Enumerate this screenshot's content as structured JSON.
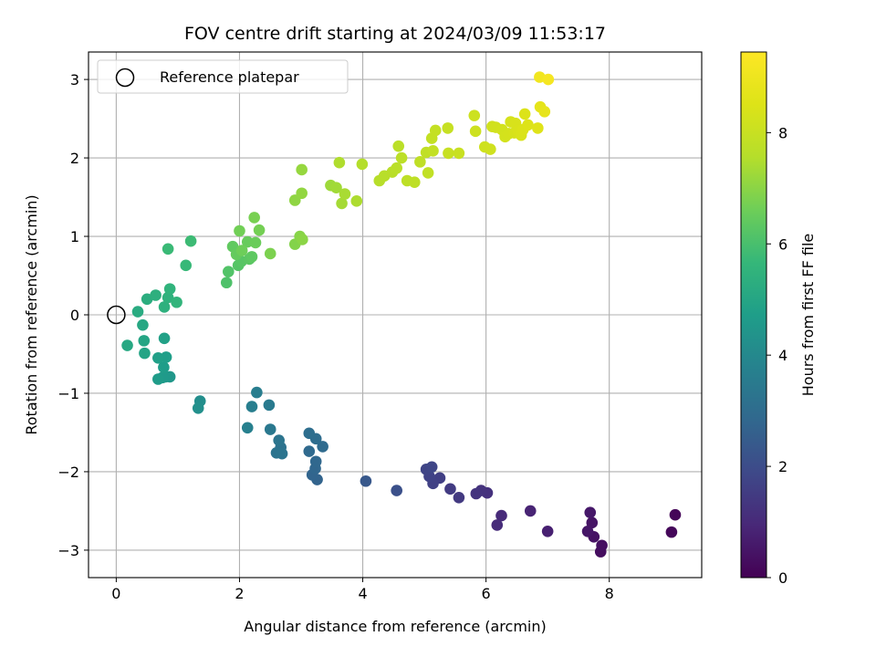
{
  "chart_data": {
    "type": "scatter",
    "title": "FOV centre drift starting at 2024/03/09 11:53:17",
    "xlabel": "Angular distance from reference (arcmin)",
    "ylabel": "Rotation from reference (arcmin)",
    "xlim": [
      -0.45,
      9.5
    ],
    "ylim": [
      -3.35,
      3.35
    ],
    "xticks": [
      0,
      2,
      4,
      6,
      8
    ],
    "yticks": [
      -3,
      -2,
      -1,
      0,
      1,
      2,
      3
    ],
    "grid": true,
    "legend": {
      "placement": "top-left",
      "entries": [
        {
          "label": "Reference platepar",
          "marker": "open-circle"
        }
      ]
    },
    "reference_point": {
      "x": 0,
      "y": 0
    },
    "colorbar": {
      "label": "Hours from first FF file",
      "colormap": "viridis",
      "range": [
        0,
        9.45
      ],
      "ticks": [
        0,
        2,
        4,
        6,
        8
      ]
    },
    "points": [
      {
        "x": 9.07,
        "y": -2.55,
        "c": 0.1
      },
      {
        "x": 9.01,
        "y": -2.77,
        "c": 0.15
      },
      {
        "x": 7.86,
        "y": -3.02,
        "c": 0.3
      },
      {
        "x": 7.88,
        "y": -2.94,
        "c": 0.35
      },
      {
        "x": 7.75,
        "y": -2.83,
        "c": 0.4
      },
      {
        "x": 7.72,
        "y": -2.65,
        "c": 0.45
      },
      {
        "x": 7.65,
        "y": -2.76,
        "c": 0.5
      },
      {
        "x": 7.69,
        "y": -2.52,
        "c": 0.55
      },
      {
        "x": 7.0,
        "y": -2.76,
        "c": 0.75
      },
      {
        "x": 6.72,
        "y": -2.5,
        "c": 0.85
      },
      {
        "x": 6.25,
        "y": -2.56,
        "c": 1.0
      },
      {
        "x": 6.18,
        "y": -2.68,
        "c": 1.05
      },
      {
        "x": 6.02,
        "y": -2.27,
        "c": 1.2
      },
      {
        "x": 5.92,
        "y": -2.24,
        "c": 1.25
      },
      {
        "x": 5.84,
        "y": -2.28,
        "c": 1.3
      },
      {
        "x": 5.56,
        "y": -2.33,
        "c": 1.45
      },
      {
        "x": 5.42,
        "y": -2.22,
        "c": 1.5
      },
      {
        "x": 5.25,
        "y": -2.08,
        "c": 1.6
      },
      {
        "x": 5.14,
        "y": -2.15,
        "c": 1.65
      },
      {
        "x": 5.08,
        "y": -2.06,
        "c": 1.7
      },
      {
        "x": 5.03,
        "y": -1.97,
        "c": 1.75
      },
      {
        "x": 5.12,
        "y": -1.94,
        "c": 1.8
      },
      {
        "x": 4.55,
        "y": -2.24,
        "c": 2.1
      },
      {
        "x": 4.05,
        "y": -2.12,
        "c": 2.35
      },
      {
        "x": 3.26,
        "y": -2.1,
        "c": 2.7
      },
      {
        "x": 3.18,
        "y": -2.04,
        "c": 2.75
      },
      {
        "x": 3.23,
        "y": -1.96,
        "c": 2.8
      },
      {
        "x": 3.24,
        "y": -1.87,
        "c": 2.85
      },
      {
        "x": 3.13,
        "y": -1.74,
        "c": 2.9
      },
      {
        "x": 3.35,
        "y": -1.68,
        "c": 2.95
      },
      {
        "x": 3.24,
        "y": -1.58,
        "c": 3.0
      },
      {
        "x": 3.13,
        "y": -1.51,
        "c": 3.05
      },
      {
        "x": 2.67,
        "y": -1.69,
        "c": 3.2
      },
      {
        "x": 2.6,
        "y": -1.76,
        "c": 3.25
      },
      {
        "x": 2.69,
        "y": -1.77,
        "c": 3.28
      },
      {
        "x": 2.64,
        "y": -1.6,
        "c": 3.3
      },
      {
        "x": 2.5,
        "y": -1.46,
        "c": 3.4
      },
      {
        "x": 2.48,
        "y": -1.15,
        "c": 3.5
      },
      {
        "x": 2.28,
        "y": -0.99,
        "c": 3.6
      },
      {
        "x": 2.2,
        "y": -1.17,
        "c": 3.65
      },
      {
        "x": 2.13,
        "y": -1.44,
        "c": 3.7
      },
      {
        "x": 1.36,
        "y": -1.1,
        "c": 4.2
      },
      {
        "x": 1.33,
        "y": -1.19,
        "c": 4.25
      },
      {
        "x": 0.87,
        "y": -0.79,
        "c": 4.5
      },
      {
        "x": 0.8,
        "y": -0.79,
        "c": 4.55
      },
      {
        "x": 0.75,
        "y": -0.8,
        "c": 4.6
      },
      {
        "x": 0.68,
        "y": -0.82,
        "c": 4.65
      },
      {
        "x": 0.77,
        "y": -0.67,
        "c": 4.7
      },
      {
        "x": 0.81,
        "y": -0.54,
        "c": 4.75
      },
      {
        "x": 0.68,
        "y": -0.55,
        "c": 4.8
      },
      {
        "x": 0.78,
        "y": -0.3,
        "c": 4.85
      },
      {
        "x": 0.46,
        "y": -0.49,
        "c": 4.95
      },
      {
        "x": 0.45,
        "y": -0.33,
        "c": 5.0
      },
      {
        "x": 0.43,
        "y": -0.13,
        "c": 5.05
      },
      {
        "x": 0.18,
        "y": -0.39,
        "c": 5.1
      },
      {
        "x": 0.35,
        "y": 0.04,
        "c": 5.2
      },
      {
        "x": 0.5,
        "y": 0.2,
        "c": 5.3
      },
      {
        "x": 0.64,
        "y": 0.25,
        "c": 5.35
      },
      {
        "x": 0.78,
        "y": 0.1,
        "c": 5.4
      },
      {
        "x": 0.84,
        "y": 0.22,
        "c": 5.45
      },
      {
        "x": 0.87,
        "y": 0.33,
        "c": 5.5
      },
      {
        "x": 0.98,
        "y": 0.16,
        "c": 5.55
      },
      {
        "x": 1.13,
        "y": 0.63,
        "c": 5.7
      },
      {
        "x": 0.84,
        "y": 0.84,
        "c": 5.75
      },
      {
        "x": 1.21,
        "y": 0.94,
        "c": 5.8
      },
      {
        "x": 1.79,
        "y": 0.41,
        "c": 6.1
      },
      {
        "x": 1.82,
        "y": 0.55,
        "c": 6.15
      },
      {
        "x": 1.98,
        "y": 0.63,
        "c": 6.2
      },
      {
        "x": 2.03,
        "y": 0.68,
        "c": 6.25
      },
      {
        "x": 2.16,
        "y": 0.71,
        "c": 6.3
      },
      {
        "x": 2.2,
        "y": 0.74,
        "c": 6.35
      },
      {
        "x": 1.89,
        "y": 0.87,
        "c": 6.4
      },
      {
        "x": 1.95,
        "y": 0.77,
        "c": 6.45
      },
      {
        "x": 2.13,
        "y": 0.93,
        "c": 6.5
      },
      {
        "x": 2.26,
        "y": 0.92,
        "c": 6.55
      },
      {
        "x": 2.04,
        "y": 0.82,
        "c": 6.6
      },
      {
        "x": 2.0,
        "y": 1.07,
        "c": 6.65
      },
      {
        "x": 2.32,
        "y": 1.08,
        "c": 6.7
      },
      {
        "x": 2.24,
        "y": 1.24,
        "c": 6.75
      },
      {
        "x": 2.5,
        "y": 0.78,
        "c": 6.8
      },
      {
        "x": 2.9,
        "y": 0.9,
        "c": 6.9
      },
      {
        "x": 2.98,
        "y": 1.0,
        "c": 6.95
      },
      {
        "x": 3.02,
        "y": 0.96,
        "c": 7.0
      },
      {
        "x": 2.9,
        "y": 1.46,
        "c": 7.05
      },
      {
        "x": 3.01,
        "y": 1.55,
        "c": 7.1
      },
      {
        "x": 3.01,
        "y": 1.85,
        "c": 7.15
      },
      {
        "x": 3.48,
        "y": 1.65,
        "c": 7.25
      },
      {
        "x": 3.57,
        "y": 1.62,
        "c": 7.3
      },
      {
        "x": 3.66,
        "y": 1.42,
        "c": 7.35
      },
      {
        "x": 3.71,
        "y": 1.54,
        "c": 7.4
      },
      {
        "x": 3.9,
        "y": 1.45,
        "c": 7.45
      },
      {
        "x": 3.62,
        "y": 1.94,
        "c": 7.5
      },
      {
        "x": 3.99,
        "y": 1.92,
        "c": 7.55
      },
      {
        "x": 4.27,
        "y": 1.71,
        "c": 7.6
      },
      {
        "x": 4.35,
        "y": 1.77,
        "c": 7.62
      },
      {
        "x": 4.48,
        "y": 1.82,
        "c": 7.65
      },
      {
        "x": 4.55,
        "y": 1.87,
        "c": 7.68
      },
      {
        "x": 4.58,
        "y": 2.15,
        "c": 7.7
      },
      {
        "x": 4.63,
        "y": 2.0,
        "c": 7.72
      },
      {
        "x": 4.72,
        "y": 1.71,
        "c": 7.75
      },
      {
        "x": 4.84,
        "y": 1.69,
        "c": 7.78
      },
      {
        "x": 4.93,
        "y": 1.95,
        "c": 7.8
      },
      {
        "x": 5.03,
        "y": 2.07,
        "c": 7.82
      },
      {
        "x": 5.06,
        "y": 1.81,
        "c": 7.85
      },
      {
        "x": 5.14,
        "y": 2.09,
        "c": 7.88
      },
      {
        "x": 5.12,
        "y": 2.25,
        "c": 7.9
      },
      {
        "x": 5.18,
        "y": 2.35,
        "c": 7.92
      },
      {
        "x": 5.38,
        "y": 2.38,
        "c": 7.95
      },
      {
        "x": 5.39,
        "y": 2.06,
        "c": 7.98
      },
      {
        "x": 5.56,
        "y": 2.06,
        "c": 8.0
      },
      {
        "x": 5.81,
        "y": 2.54,
        "c": 8.1
      },
      {
        "x": 5.83,
        "y": 2.34,
        "c": 8.12
      },
      {
        "x": 5.98,
        "y": 2.14,
        "c": 8.15
      },
      {
        "x": 6.07,
        "y": 2.11,
        "c": 8.18
      },
      {
        "x": 6.1,
        "y": 2.4,
        "c": 8.2
      },
      {
        "x": 6.16,
        "y": 2.39,
        "c": 8.22
      },
      {
        "x": 6.26,
        "y": 2.36,
        "c": 8.25
      },
      {
        "x": 6.31,
        "y": 2.27,
        "c": 8.28
      },
      {
        "x": 6.37,
        "y": 2.31,
        "c": 8.3
      },
      {
        "x": 6.4,
        "y": 2.46,
        "c": 8.32
      },
      {
        "x": 6.46,
        "y": 2.32,
        "c": 8.35
      },
      {
        "x": 6.48,
        "y": 2.44,
        "c": 8.38
      },
      {
        "x": 6.52,
        "y": 2.35,
        "c": 8.4
      },
      {
        "x": 6.57,
        "y": 2.29,
        "c": 8.42
      },
      {
        "x": 6.6,
        "y": 2.36,
        "c": 8.45
      },
      {
        "x": 6.63,
        "y": 2.56,
        "c": 8.48
      },
      {
        "x": 6.68,
        "y": 2.42,
        "c": 8.5
      },
      {
        "x": 6.84,
        "y": 2.38,
        "c": 8.55
      },
      {
        "x": 6.88,
        "y": 2.65,
        "c": 8.75
      },
      {
        "x": 6.95,
        "y": 2.59,
        "c": 8.8
      },
      {
        "x": 6.87,
        "y": 3.03,
        "c": 9.1
      },
      {
        "x": 7.01,
        "y": 3.0,
        "c": 9.2
      }
    ]
  }
}
